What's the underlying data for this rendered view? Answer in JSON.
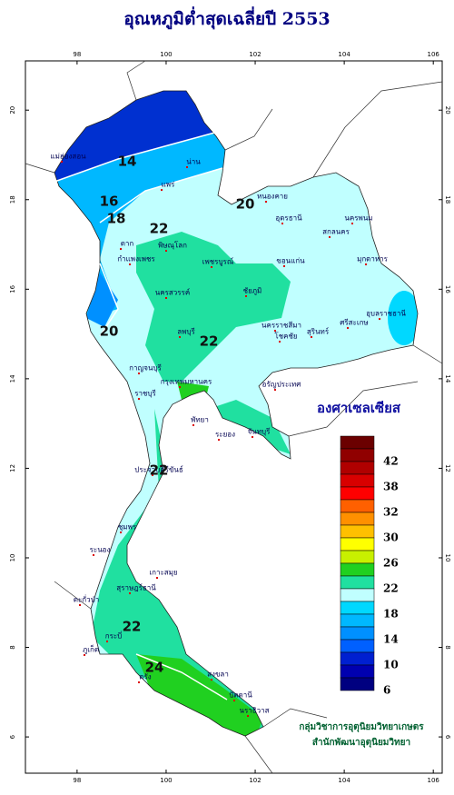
{
  "title": "อุณหภูมิต่ำสุดเฉลี่ยปี 2553",
  "map": {
    "xlim": [
      96.84,
      106.2
    ],
    "ylim": [
      5.19,
      21.1
    ],
    "lon_ticks": [
      98,
      100,
      102,
      104,
      106
    ],
    "lat_ticks": [
      6,
      8,
      10,
      12,
      14,
      16,
      18,
      20
    ]
  },
  "legend": {
    "title": "องศาเซลเซียส",
    "colors": [
      "#6b0000",
      "#900000",
      "#b00000",
      "#d80000",
      "#ff0000",
      "#ff6000",
      "#ff9000",
      "#ffc000",
      "#ffff00",
      "#c8f000",
      "#20d020",
      "#20e0a0",
      "#c0ffff",
      "#00d8ff",
      "#00b8ff",
      "#0090ff",
      "#0060ff",
      "#0020d0",
      "#0000b0",
      "#000080"
    ],
    "labels": [
      42,
      38,
      32,
      30,
      26,
      22,
      18,
      14,
      10,
      6
    ]
  },
  "isotherm_labels": [
    14,
    16,
    18,
    20,
    22,
    20,
    22,
    22,
    22,
    24
  ],
  "places": [
    "แม่ฮ่องสอน",
    "น่าน",
    "แพร่",
    "หนองคาย",
    "อุดรธานี",
    "นครพนม",
    "สกลนคร",
    "มุกดาหาร",
    "ตาก",
    "พิษณุโลก",
    "กำแพงเพชร",
    "เพชรบูรณ์",
    "ขอนแก่น",
    "นครสวรรค์",
    "ชัยภูมิ",
    "ลพบุรี",
    "นครราชสีมา",
    "โชคชัย",
    "อุบลราชธานี",
    "ศรีสะเกษ",
    "สุรินทร์",
    "กาญจนบุรี",
    "กรุงเทพมหานคร",
    "อรัญประเทศ",
    "ราชบุรี",
    "พัทยา",
    "ระยอง",
    "จันทบุรี",
    "ประจวบคีรีขันธ์",
    "ชุมพร",
    "ระนอง",
    "เกาะสมุย",
    "สุราษฎร์ธานี",
    "ตะกั่วป่า",
    "กระบี่",
    "ภูเก็ต",
    "ตรัง",
    "สงขลา",
    "ปัตตานี",
    "นราธิวาส"
  ],
  "credit": [
    "กลุ่มวิชาการอุตุนิยมวิทยาเกษตร",
    "สำนักพัฒนาอุตุนิยมวิทยา"
  ]
}
